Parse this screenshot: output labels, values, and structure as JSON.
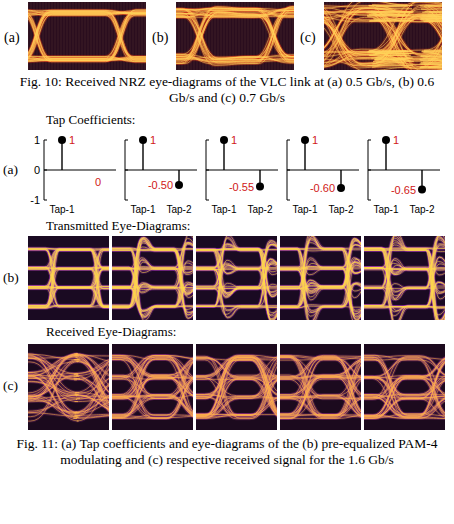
{
  "figure10": {
    "panels": [
      {
        "label": "(a)"
      },
      {
        "label": "(b)"
      },
      {
        "label": "(c)"
      }
    ],
    "caption": "Fig. 10: Received NRZ eye-diagrams of the VLC link at (a) 0.5 Gb/s, (b) 0.6 Gb/s and (c) 0.7 Gb/s"
  },
  "figure11": {
    "rows": [
      {
        "label": "(a)",
        "heading": "Tap Coefficients:"
      },
      {
        "label": "(b)",
        "heading": "Transmitted Eye-Diagrams:"
      },
      {
        "label": "(c)",
        "heading": "Received Eye-Diagrams:"
      }
    ],
    "caption": "Fig. 11: (a) Tap coefficients and eye-diagrams of the (b) pre-equalized PAM-4 modulating and (c) respective received signal for the 1.6 Gb/s"
  },
  "chart_data": [
    {
      "type": "stem",
      "categories": [
        "Tap-1",
        null
      ],
      "values": [
        1,
        0
      ],
      "value_labels": [
        "1",
        "0"
      ],
      "data_labels": true,
      "color": "#000000",
      "marker": "circle",
      "ylim": [
        -1,
        1
      ],
      "yticks": [
        -1,
        0,
        1
      ]
    },
    {
      "type": "stem",
      "categories": [
        "Tap-1",
        "Tap-2"
      ],
      "values": [
        1,
        -0.5
      ],
      "value_labels": [
        "1",
        "-0.50"
      ],
      "data_labels": true,
      "color": "#000000",
      "marker": "circle",
      "ylim": [
        -1,
        1
      ],
      "yticks": [
        -1,
        0,
        1
      ],
      "tick_labels": "x"
    },
    {
      "type": "stem",
      "categories": [
        "Tap-1",
        "Tap-2"
      ],
      "values": [
        1,
        -0.55
      ],
      "value_labels": [
        "1",
        "-0.55"
      ],
      "data_labels": true,
      "color": "#000000",
      "marker": "circle",
      "ylim": [
        -1,
        1
      ],
      "yticks": [
        -1,
        0,
        1
      ],
      "tick_labels": "x"
    },
    {
      "type": "stem",
      "categories": [
        "Tap-1",
        "Tap-2"
      ],
      "values": [
        1,
        -0.6
      ],
      "value_labels": [
        "1",
        "-0.60"
      ],
      "data_labels": true,
      "color": "#000000",
      "marker": "circle",
      "ylim": [
        -1,
        1
      ],
      "yticks": [
        -1,
        0,
        1
      ],
      "tick_labels": "x"
    },
    {
      "type": "stem",
      "categories": [
        "Tap-1",
        "Tap-2"
      ],
      "values": [
        1,
        -0.65
      ],
      "value_labels": [
        "1",
        "-0.65"
      ],
      "data_labels": true,
      "color": "#000000",
      "marker": "circle",
      "ylim": [
        -1,
        1
      ],
      "yticks": [
        -1,
        0,
        1
      ],
      "tick_labels": "x"
    }
  ]
}
